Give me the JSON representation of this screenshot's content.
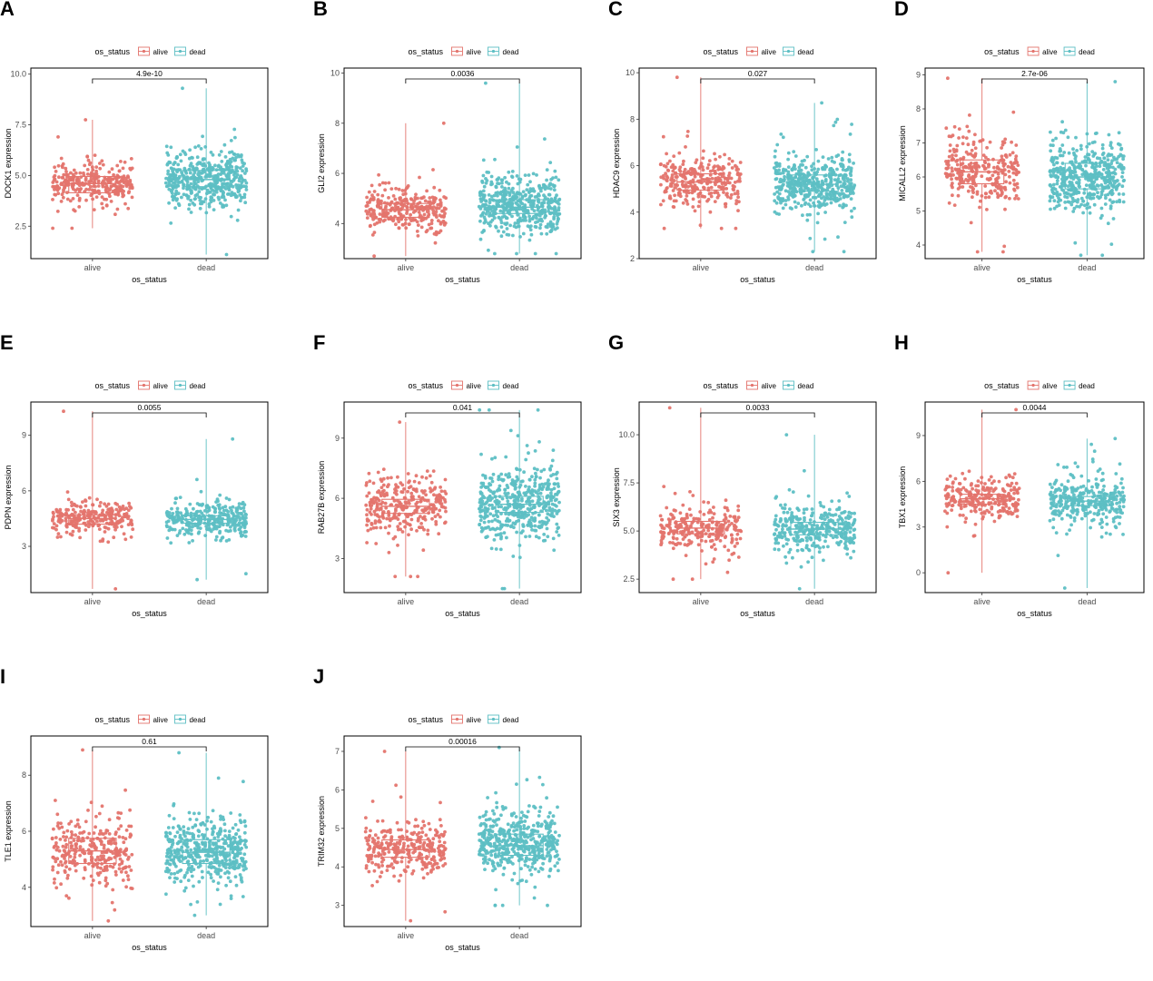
{
  "legend": {
    "title": "os_status",
    "groups": [
      "alive",
      "dead"
    ],
    "colors": {
      "alive": "#E4746D",
      "dead": "#5DBFC4"
    }
  },
  "chart_data": [
    {
      "panel_label": "A",
      "type": "boxplot-jitter",
      "ylabel": "DOCK1 expression",
      "xlabel": "os_status",
      "categories": [
        "alive",
        "dead"
      ],
      "yticks": [
        2.5,
        5.0,
        7.5,
        10.0
      ],
      "ytick_labels": [
        "2.5",
        "5.0",
        "7.5",
        "10.0"
      ],
      "ylim": [
        0.9,
        10.3
      ],
      "pvalue": "4.9e-10",
      "boxes": [
        {
          "group": "alive",
          "q1": 4.15,
          "median": 4.6,
          "q3": 4.95,
          "wmin": 2.4,
          "wmax": 7.75
        },
        {
          "group": "dead",
          "q1": 4.45,
          "median": 4.8,
          "q3": 5.25,
          "wmin": 1.1,
          "wmax": 9.3
        }
      ],
      "points": [
        {
          "group": "alive",
          "n": 300,
          "center": 4.6,
          "spread": 0.75,
          "min": 2.4,
          "max": 7.75
        },
        {
          "group": "dead",
          "n": 470,
          "center": 4.85,
          "spread": 1.05,
          "min": 1.1,
          "max": 9.3
        }
      ]
    },
    {
      "panel_label": "B",
      "type": "boxplot-jitter",
      "ylabel": "GLI2 expression",
      "xlabel": "os_status",
      "categories": [
        "alive",
        "dead"
      ],
      "yticks": [
        4,
        6,
        8,
        10
      ],
      "ytick_labels": [
        "4",
        "6",
        "8",
        "10"
      ],
      "ylim": [
        2.6,
        10.2
      ],
      "pvalue": "0.0036",
      "boxes": [
        {
          "group": "alive",
          "q1": 4.25,
          "median": 4.55,
          "q3": 4.8,
          "wmin": 2.7,
          "wmax": 8.0
        },
        {
          "group": "dead",
          "q1": 4.4,
          "median": 4.65,
          "q3": 4.95,
          "wmin": 2.8,
          "wmax": 9.6
        }
      ],
      "points": [
        {
          "group": "alive",
          "n": 300,
          "center": 4.55,
          "spread": 0.65,
          "min": 2.7,
          "max": 8.0
        },
        {
          "group": "dead",
          "n": 470,
          "center": 4.7,
          "spread": 0.95,
          "min": 2.8,
          "max": 9.6
        }
      ]
    },
    {
      "panel_label": "C",
      "type": "boxplot-jitter",
      "ylabel": "HDAC9 expression",
      "xlabel": "os_status",
      "categories": [
        "alive",
        "dead"
      ],
      "yticks": [
        2,
        4,
        6,
        8,
        10
      ],
      "ytick_labels": [
        "2",
        "4",
        "6",
        "8",
        "10"
      ],
      "ylim": [
        2.0,
        10.2
      ],
      "pvalue": "0.027",
      "boxes": [
        {
          "group": "alive",
          "q1": 4.95,
          "median": 5.3,
          "q3": 5.65,
          "wmin": 3.3,
          "wmax": 9.8
        },
        {
          "group": "dead",
          "q1": 4.9,
          "median": 5.2,
          "q3": 5.6,
          "wmin": 2.3,
          "wmax": 8.7
        }
      ],
      "points": [
        {
          "group": "alive",
          "n": 300,
          "center": 5.3,
          "spread": 0.85,
          "min": 3.3,
          "max": 9.8
        },
        {
          "group": "dead",
          "n": 470,
          "center": 5.2,
          "spread": 0.95,
          "min": 2.3,
          "max": 8.7
        }
      ]
    },
    {
      "panel_label": "D",
      "type": "boxplot-jitter",
      "ylabel": "MICALL2 expression",
      "xlabel": "os_status",
      "categories": [
        "alive",
        "dead"
      ],
      "yticks": [
        4,
        5,
        6,
        7,
        8,
        9
      ],
      "ytick_labels": [
        "4",
        "5",
        "6",
        "7",
        "8",
        "9"
      ],
      "ylim": [
        3.6,
        9.2
      ],
      "pvalue": "2.7e-06",
      "boxes": [
        {
          "group": "alive",
          "q1": 5.8,
          "median": 6.15,
          "q3": 6.5,
          "wmin": 3.8,
          "wmax": 8.9
        },
        {
          "group": "dead",
          "q1": 5.65,
          "median": 6.0,
          "q3": 6.4,
          "wmin": 3.7,
          "wmax": 8.8
        }
      ],
      "points": [
        {
          "group": "alive",
          "n": 300,
          "center": 6.15,
          "spread": 0.7,
          "min": 3.8,
          "max": 8.9
        },
        {
          "group": "dead",
          "n": 470,
          "center": 6.0,
          "spread": 0.75,
          "min": 3.7,
          "max": 8.8
        }
      ]
    },
    {
      "panel_label": "E",
      "type": "boxplot-jitter",
      "ylabel": "PDPN expression",
      "xlabel": "os_status",
      "categories": [
        "alive",
        "dead"
      ],
      "yticks": [
        3,
        6,
        9
      ],
      "ytick_labels": [
        "3",
        "6",
        "9"
      ],
      "ylim": [
        0.5,
        10.8
      ],
      "pvalue": "0.0055",
      "boxes": [
        {
          "group": "alive",
          "q1": 4.2,
          "median": 4.5,
          "q3": 4.7,
          "wmin": 0.7,
          "wmax": 10.3
        },
        {
          "group": "dead",
          "q1": 4.25,
          "median": 4.45,
          "q3": 4.65,
          "wmin": 1.2,
          "wmax": 8.8
        }
      ],
      "points": [
        {
          "group": "alive",
          "n": 260,
          "center": 4.5,
          "spread": 0.7,
          "min": 0.7,
          "max": 10.3
        },
        {
          "group": "dead",
          "n": 330,
          "center": 4.45,
          "spread": 0.75,
          "min": 1.2,
          "max": 8.8
        }
      ]
    },
    {
      "panel_label": "F",
      "type": "boxplot-jitter",
      "ylabel": "RAB27B expression",
      "xlabel": "os_status",
      "categories": [
        "alive",
        "dead"
      ],
      "yticks": [
        3,
        6,
        9
      ],
      "ytick_labels": [
        "3",
        "6",
        "9"
      ],
      "ylim": [
        1.3,
        10.8
      ],
      "pvalue": "0.041",
      "boxes": [
        {
          "group": "alive",
          "q1": 5.25,
          "median": 5.6,
          "q3": 5.95,
          "wmin": 2.1,
          "wmax": 9.8
        },
        {
          "group": "dead",
          "q1": 5.3,
          "median": 5.7,
          "q3": 6.1,
          "wmin": 1.5,
          "wmax": 10.4
        }
      ],
      "points": [
        {
          "group": "alive",
          "n": 300,
          "center": 5.6,
          "spread": 1.2,
          "min": 2.1,
          "max": 9.8
        },
        {
          "group": "dead",
          "n": 470,
          "center": 5.7,
          "spread": 1.5,
          "min": 1.5,
          "max": 10.4
        }
      ]
    },
    {
      "panel_label": "G",
      "type": "boxplot-jitter",
      "ylabel": "SIX3 expression",
      "xlabel": "os_status",
      "categories": [
        "alive",
        "dead"
      ],
      "yticks": [
        2.5,
        5.0,
        7.5,
        10.0
      ],
      "ytick_labels": [
        "2.5",
        "5.0",
        "7.5",
        "10.0"
      ],
      "ylim": [
        1.8,
        11.7
      ],
      "pvalue": "0.0033",
      "boxes": [
        {
          "group": "alive",
          "q1": 4.85,
          "median": 5.15,
          "q3": 5.5,
          "wmin": 2.5,
          "wmax": 11.4
        },
        {
          "group": "dead",
          "q1": 4.8,
          "median": 5.1,
          "q3": 5.45,
          "wmin": 2.0,
          "wmax": 10.0
        }
      ],
      "points": [
        {
          "group": "alive",
          "n": 260,
          "center": 5.15,
          "spread": 0.9,
          "min": 2.5,
          "max": 11.4
        },
        {
          "group": "dead",
          "n": 330,
          "center": 5.1,
          "spread": 0.95,
          "min": 2.0,
          "max": 10.0
        }
      ]
    },
    {
      "panel_label": "H",
      "type": "boxplot-jitter",
      "ylabel": "TBX1 expression",
      "xlabel": "os_status",
      "categories": [
        "alive",
        "dead"
      ],
      "yticks": [
        0,
        3,
        6,
        9
      ],
      "ytick_labels": [
        "0",
        "3",
        "6",
        "9"
      ],
      "ylim": [
        -1.3,
        11.2
      ],
      "pvalue": "0.0044",
      "boxes": [
        {
          "group": "alive",
          "q1": 4.5,
          "median": 4.85,
          "q3": 5.15,
          "wmin": 0.0,
          "wmax": 10.7
        },
        {
          "group": "dead",
          "q1": 4.4,
          "median": 4.7,
          "q3": 5.0,
          "wmin": -1.0,
          "wmax": 8.8
        }
      ],
      "points": [
        {
          "group": "alive",
          "n": 260,
          "center": 4.85,
          "spread": 1.0,
          "min": 0.0,
          "max": 10.7
        },
        {
          "group": "dead",
          "n": 330,
          "center": 4.7,
          "spread": 1.2,
          "min": -1.0,
          "max": 8.8
        }
      ]
    },
    {
      "panel_label": "I",
      "type": "boxplot-jitter",
      "ylabel": "TLE1 expression",
      "xlabel": "os_status",
      "categories": [
        "alive",
        "dead"
      ],
      "yticks": [
        4,
        6,
        8
      ],
      "ytick_labels": [
        "4",
        "6",
        "8"
      ],
      "ylim": [
        2.6,
        9.4
      ],
      "pvalue": "0.61",
      "boxes": [
        {
          "group": "alive",
          "q1": 4.85,
          "median": 5.3,
          "q3": 5.75,
          "wmin": 2.8,
          "wmax": 8.9
        },
        {
          "group": "dead",
          "q1": 4.85,
          "median": 5.25,
          "q3": 5.7,
          "wmin": 3.0,
          "wmax": 8.8
        }
      ],
      "points": [
        {
          "group": "alive",
          "n": 300,
          "center": 5.3,
          "spread": 0.9,
          "min": 2.8,
          "max": 8.9
        },
        {
          "group": "dead",
          "n": 470,
          "center": 5.25,
          "spread": 0.9,
          "min": 3.0,
          "max": 8.8
        }
      ]
    },
    {
      "panel_label": "J",
      "type": "boxplot-jitter",
      "ylabel": "TRIM32 expression",
      "xlabel": "os_status",
      "categories": [
        "alive",
        "dead"
      ],
      "yticks": [
        3,
        4,
        5,
        6,
        7
      ],
      "ytick_labels": [
        "3",
        "4",
        "5",
        "6",
        "7"
      ],
      "ylim": [
        2.45,
        7.4
      ],
      "pvalue": "0.00016",
      "boxes": [
        {
          "group": "alive",
          "q1": 4.25,
          "median": 4.45,
          "q3": 4.7,
          "wmin": 2.6,
          "wmax": 7.0
        },
        {
          "group": "dead",
          "q1": 4.3,
          "median": 4.55,
          "q3": 4.85,
          "wmin": 3.0,
          "wmax": 7.1
        }
      ],
      "points": [
        {
          "group": "alive",
          "n": 300,
          "center": 4.45,
          "spread": 0.5,
          "min": 2.6,
          "max": 7.0
        },
        {
          "group": "dead",
          "n": 470,
          "center": 4.6,
          "spread": 0.6,
          "min": 3.0,
          "max": 7.1
        }
      ]
    }
  ]
}
